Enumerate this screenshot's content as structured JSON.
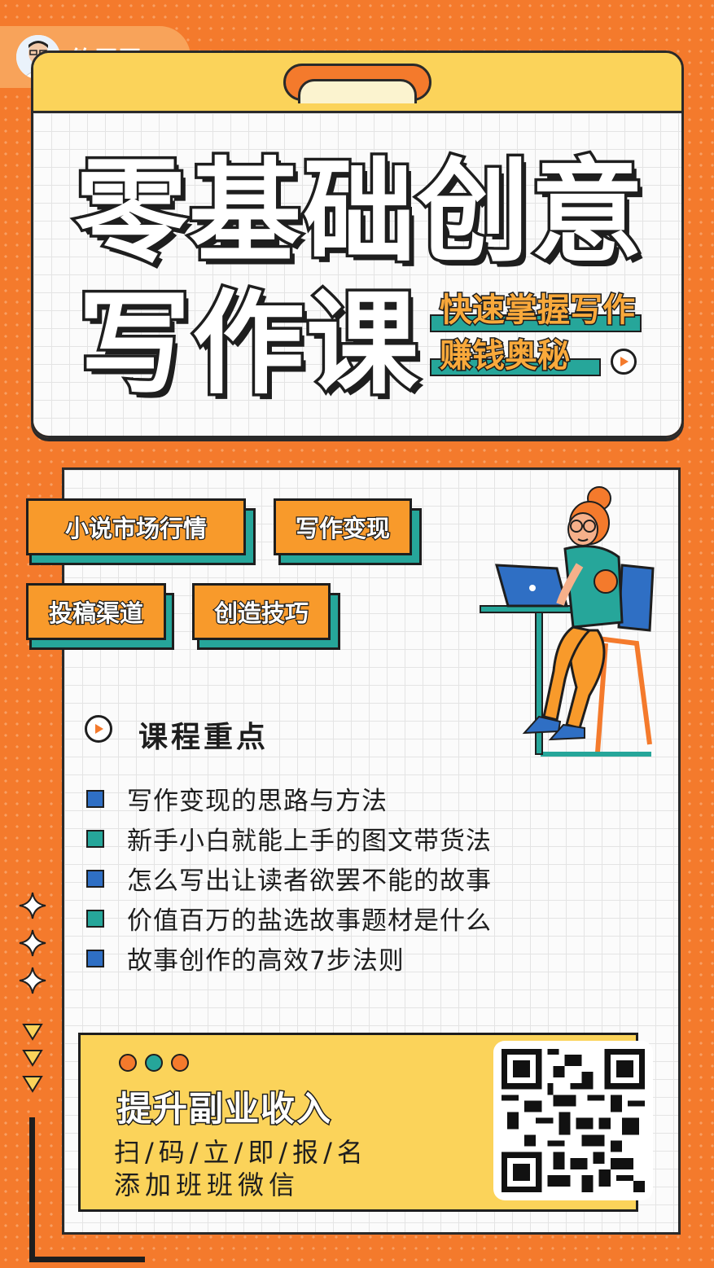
{
  "author": {
    "name": "钧哥哥"
  },
  "title": {
    "line1": "零基础创意",
    "line2": "写作课"
  },
  "tagline": {
    "line1": "快速掌握写作",
    "line2": "赚钱奥秘"
  },
  "chips": [
    "小说市场行情",
    "写作变现",
    "投稿渠道",
    "创造技巧"
  ],
  "section": {
    "title": "课程重点"
  },
  "points": [
    "写作变现的思路与方法",
    "新手小白就能上手的图文带货法",
    "怎么写出让读者欲罢不能的故事",
    "价值百万的盐选故事题材是什么",
    "故事创作的高效7步法则"
  ],
  "cta": {
    "main": "提升副业收入",
    "sub1": "扫/码/立/即/报/名",
    "sub2": "添加班班微信"
  },
  "colors": {
    "orange": "#f47a2c",
    "yellow": "#fbd35a",
    "teal": "#26a69a",
    "blue": "#2f6fc4",
    "dark": "#1e1e1e"
  },
  "icons": [
    "play-icon",
    "sparkle-icon",
    "triangle-down-icon",
    "qr-code",
    "person-with-laptop-illustration"
  ]
}
